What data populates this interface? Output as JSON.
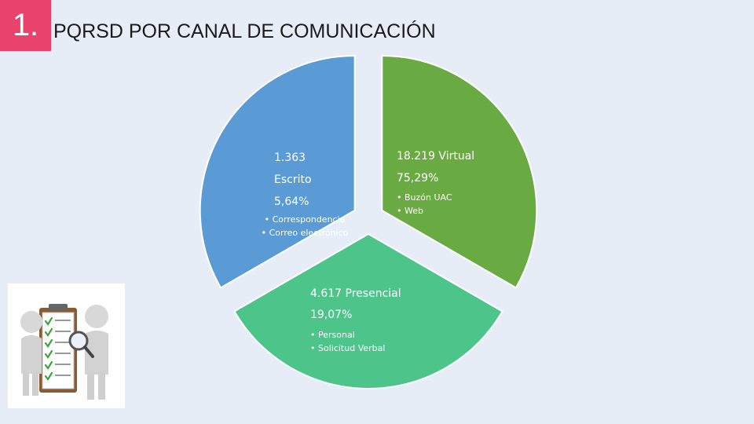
{
  "header": {
    "number": "1.",
    "title": "PQRSD POR CANAL DE COMUNICACIÓN"
  },
  "colors": {
    "escrito": "#6aaa43",
    "virtual": "#5b9bd5",
    "presencial": "#4dc48a",
    "badge": "#e8436b"
  },
  "chart_data": {
    "type": "pie",
    "slices": [
      {
        "key": "escrito",
        "count_label": "1.363",
        "name": "Escrito",
        "percent_label": "5,64%",
        "value": 1363,
        "percent": 5.64,
        "bullets": [
          "Correspondencia",
          "Correo electrónico"
        ]
      },
      {
        "key": "virtual",
        "count_label": "18.219 Virtual",
        "percent_label": "75,29%",
        "value": 18219,
        "percent": 75.29,
        "bullets": [
          "Buzón UAC",
          "Web"
        ]
      },
      {
        "key": "presencial",
        "count_label": "4.617 Presencial",
        "percent_label": "19,07%",
        "value": 4617,
        "percent": 19.07,
        "bullets": [
          "Personal",
          "Solicitud Verbal"
        ]
      }
    ]
  },
  "illustration": {
    "icon": "clipboard-checklist-magnifier-icon"
  }
}
